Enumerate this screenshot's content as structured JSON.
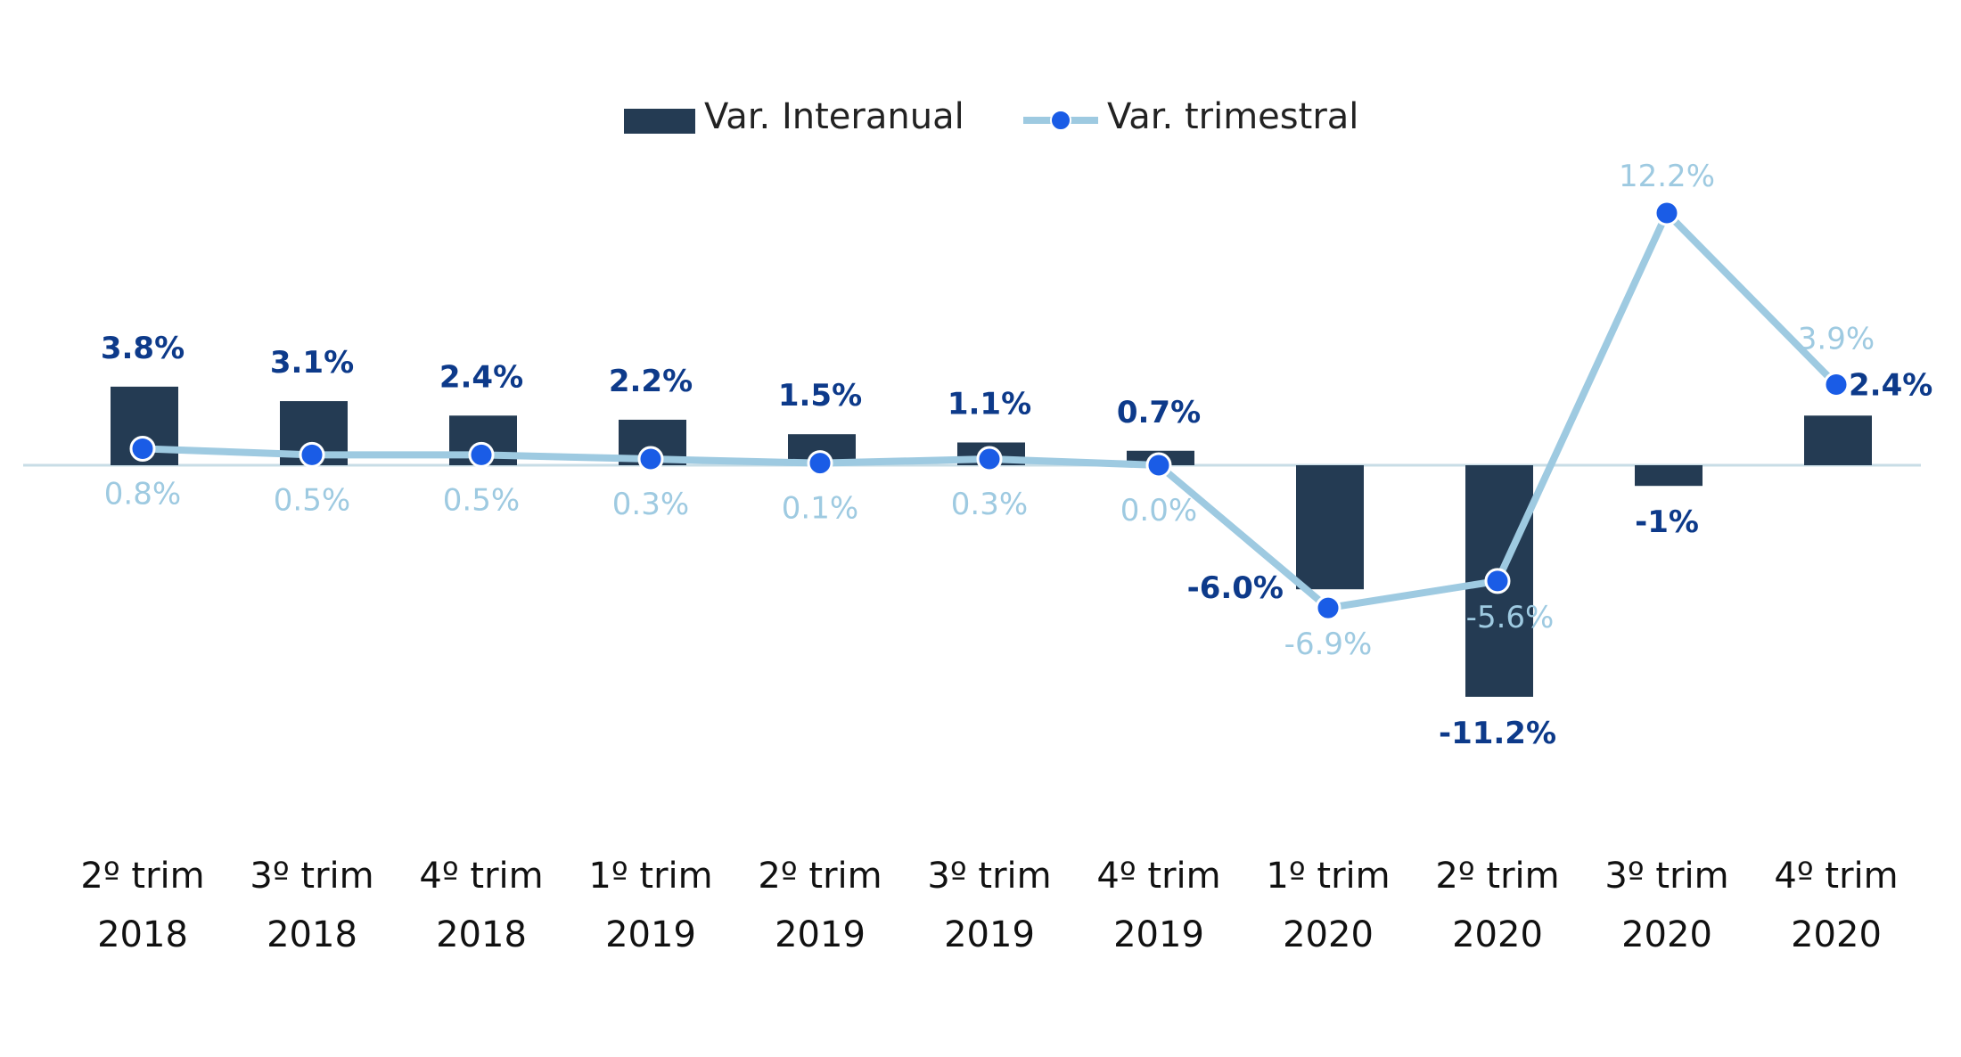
{
  "chart_data": {
    "type": "bar",
    "categories": [
      [
        "2º trim",
        "2018"
      ],
      [
        "3º trim",
        "2018"
      ],
      [
        "4º trim",
        "2018"
      ],
      [
        "1º trim",
        "2019"
      ],
      [
        "2º trim",
        "2019"
      ],
      [
        "3º trim",
        "2019"
      ],
      [
        "4º trim",
        "2019"
      ],
      [
        "1º trim",
        "2020"
      ],
      [
        "2º trim",
        "2020"
      ],
      [
        "3º trim",
        "2020"
      ],
      [
        "4º trim",
        "2020"
      ]
    ],
    "series": [
      {
        "name": "Var. Interanual",
        "type": "bar",
        "color": "#243b53",
        "label_color": "#0d3a8a",
        "values": [
          3.8,
          3.1,
          2.4,
          2.2,
          1.5,
          1.1,
          0.7,
          -6.0,
          -11.2,
          -1,
          2.4
        ],
        "labels": [
          "3.8%",
          "3.1%",
          "2.4%",
          "2.2%",
          "1.5%",
          "1.1%",
          "0.7%",
          "-6.0%",
          "-11.2%",
          "-1%",
          "2.4%"
        ]
      },
      {
        "name": "Var. trimestral",
        "type": "line",
        "color": "#9ecae1",
        "marker_color": "#1a5ce6",
        "label_color": "#9ecae1",
        "values": [
          0.8,
          0.5,
          0.5,
          0.3,
          0.1,
          0.3,
          0.0,
          -6.9,
          -5.6,
          12.2,
          3.9
        ],
        "labels": [
          "0.8%",
          "0.5%",
          "0.5%",
          "0.3%",
          "0.1%",
          "0.3%",
          "0.0%",
          "-6.9%",
          "-5.6%",
          "12.2%",
          "3.9%"
        ]
      }
    ],
    "ylim": [
      -14,
      15
    ],
    "grid": false,
    "legend": "top-center",
    "title": "",
    "xlabel": "",
    "ylabel": ""
  }
}
